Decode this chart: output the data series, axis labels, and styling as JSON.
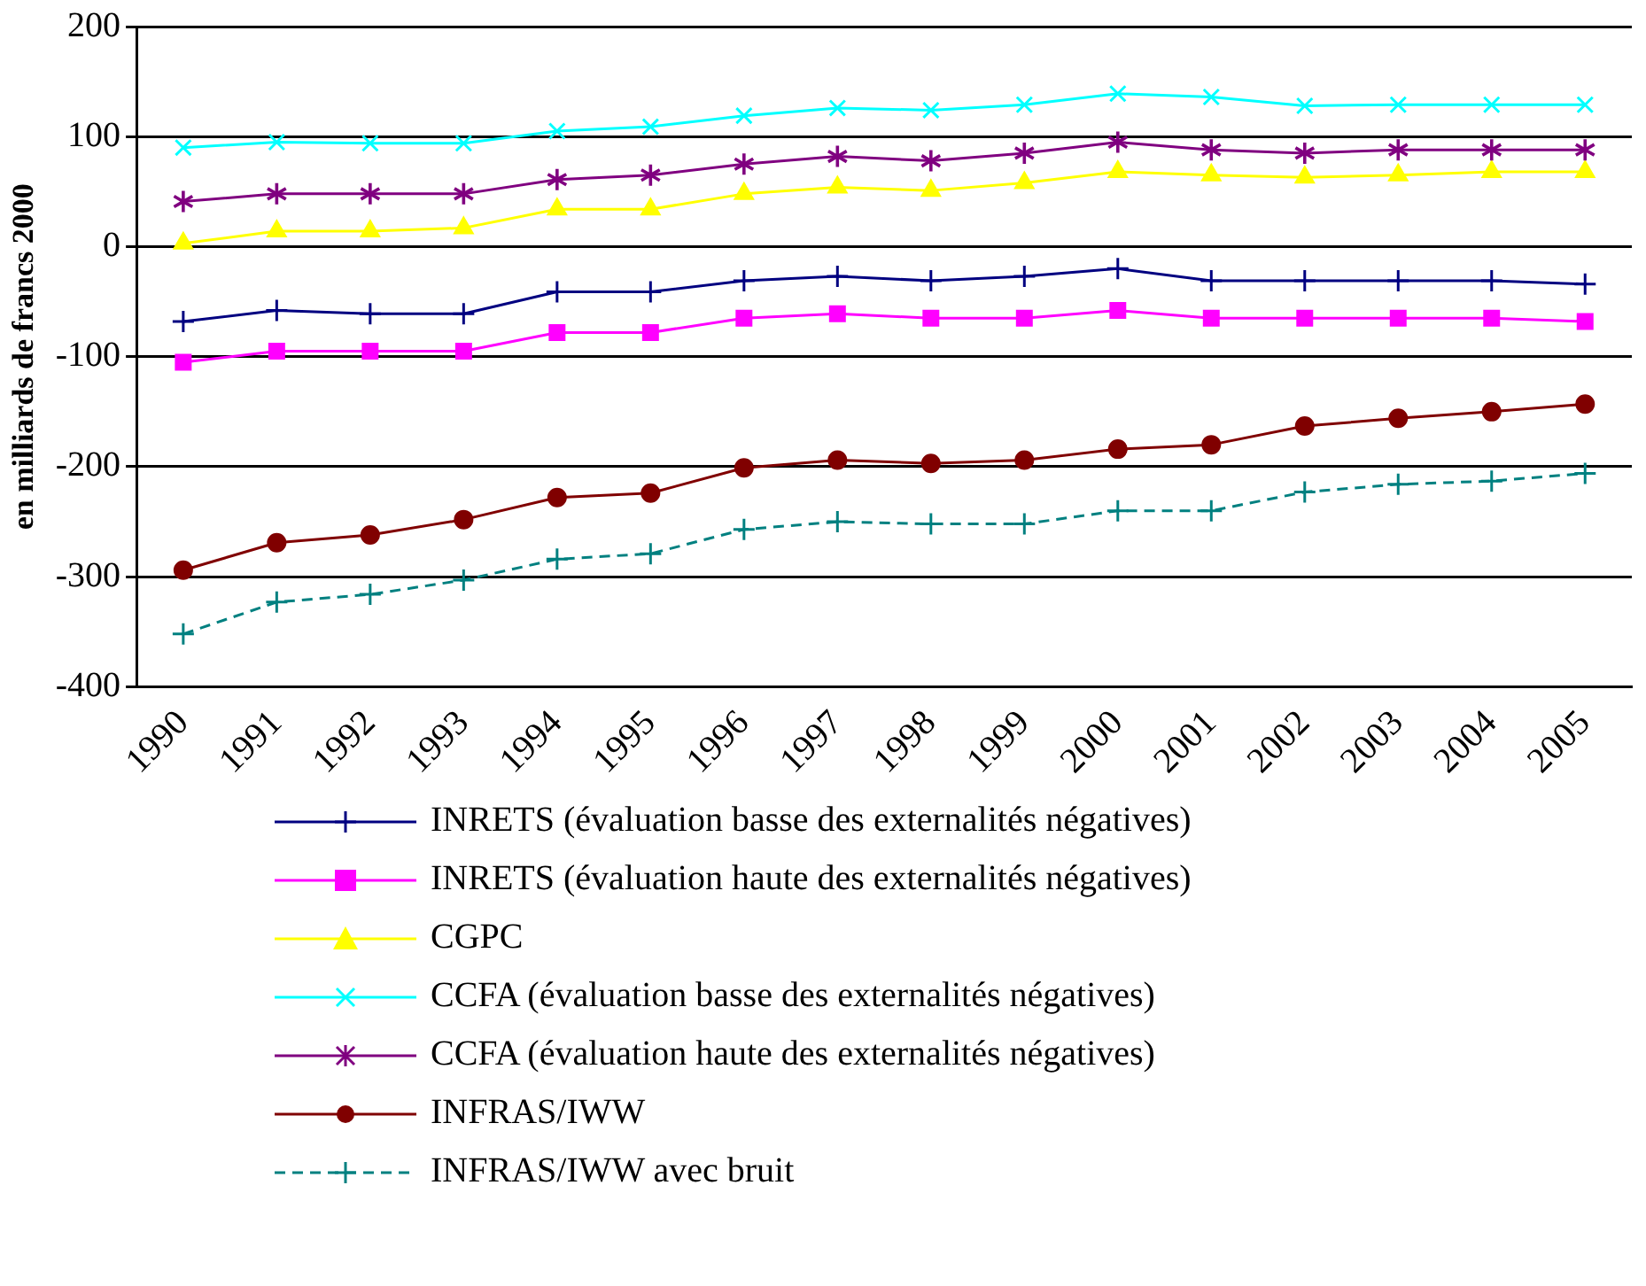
{
  "chart_data": {
    "type": "line",
    "ylabel": "en milliards de francs 2000",
    "categories": [
      "1990",
      "1991",
      "1992",
      "1993",
      "1994",
      "1995",
      "1996",
      "1997",
      "1998",
      "1999",
      "2000",
      "2001",
      "2002",
      "2003",
      "2004",
      "2005"
    ],
    "ylim": [
      -400,
      200
    ],
    "yticks": [
      -400,
      -300,
      -200,
      -100,
      0,
      100,
      200
    ],
    "grid": "y",
    "legend": "bottom",
    "series": [
      {
        "name": "INRETS (évaluation basse des externalités négatives)",
        "color": "#000080",
        "marker": "cross",
        "line_style": "solid",
        "values": [
          -68,
          -58,
          -61,
          -61,
          -41,
          -41,
          -31,
          -27,
          -31,
          -27,
          -20,
          -31,
          -31,
          -31,
          -31,
          -34
        ]
      },
      {
        "name": "INRETS (évaluation haute des externalités négatives)",
        "color": "#ff00ff",
        "marker": "square",
        "line_style": "solid",
        "values": [
          -105,
          -95,
          -95,
          -95,
          -78,
          -78,
          -65,
          -61,
          -65,
          -65,
          -58,
          -65,
          -65,
          -65,
          -65,
          -68
        ]
      },
      {
        "name": "CGPC",
        "color": "#ffff00",
        "marker": "triangle",
        "line_style": "solid",
        "values": [
          3,
          14,
          14,
          17,
          34,
          34,
          48,
          54,
          51,
          58,
          68,
          65,
          63,
          65,
          68,
          68
        ]
      },
      {
        "name": "CCFA (évaluation basse des externalités négatives)",
        "color": "#00ffff",
        "marker": "x",
        "line_style": "solid",
        "values": [
          90,
          95,
          94,
          94,
          105,
          109,
          119,
          126,
          124,
          129,
          139,
          136,
          128,
          129,
          129,
          129
        ]
      },
      {
        "name": "CCFA (évaluation haute des externalités négatives)",
        "color": "#800080",
        "marker": "star",
        "line_style": "solid",
        "values": [
          41,
          48,
          48,
          48,
          61,
          65,
          75,
          82,
          78,
          85,
          95,
          88,
          85,
          88,
          88,
          88
        ]
      },
      {
        "name": "INFRAS/IWW",
        "color": "#800000",
        "marker": "circle",
        "line_style": "solid",
        "values": [
          -294,
          -269,
          -262,
          -248,
          -228,
          -224,
          -201,
          -194,
          -197,
          -194,
          -184,
          -180,
          -163,
          -156,
          -150,
          -143
        ]
      },
      {
        "name": "INFRAS/IWW avec bruit",
        "color": "#008080",
        "marker": "cross",
        "line_style": "dashed",
        "values": [
          -352,
          -323,
          -316,
          -303,
          -284,
          -279,
          -257,
          -250,
          -252,
          -252,
          -240,
          -240,
          -223,
          -216,
          -213,
          -206
        ]
      }
    ]
  }
}
